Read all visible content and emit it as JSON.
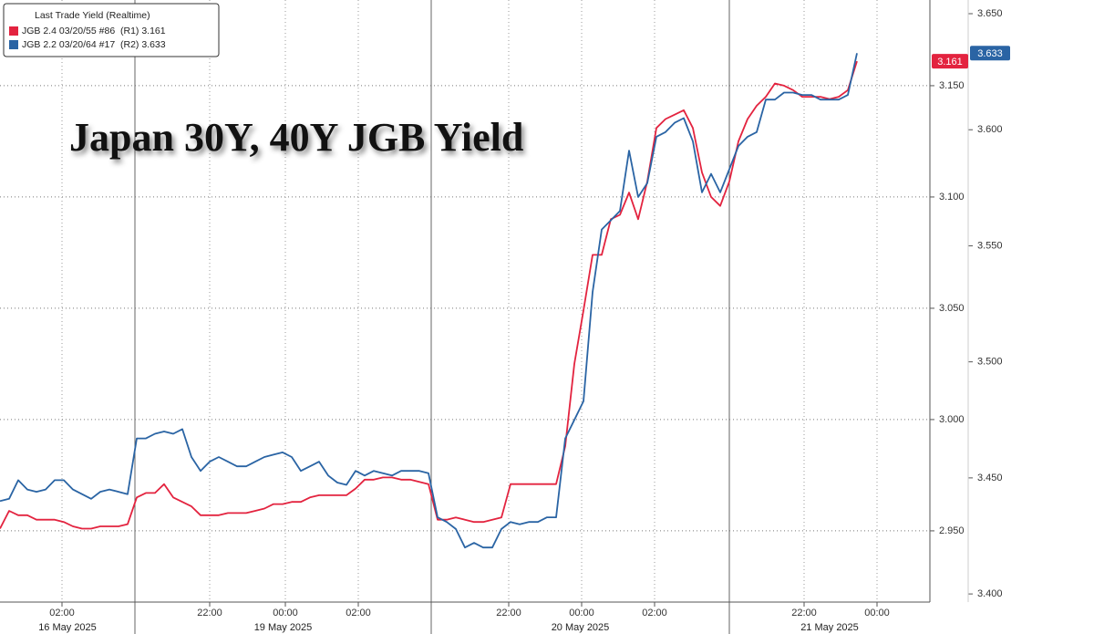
{
  "chart_data": {
    "type": "line",
    "title": "Japan 30Y, 40Y JGB Yield",
    "legend_title": "Last Trade Yield (Realtime)",
    "x": [
      0,
      1,
      2,
      3,
      4,
      5,
      6,
      7,
      8,
      9,
      10,
      11,
      12,
      13,
      14,
      15,
      16,
      17,
      18,
      19,
      20,
      21,
      22,
      23,
      24,
      25,
      26,
      27,
      28,
      29,
      30,
      31,
      32,
      33,
      34,
      35,
      36,
      37,
      38,
      39,
      40,
      41,
      42,
      43,
      44,
      45,
      46,
      47,
      48,
      49,
      50,
      51,
      52,
      53,
      54,
      55,
      56,
      57,
      58,
      59,
      60,
      61,
      62,
      63,
      64,
      65,
      66,
      67,
      68,
      69,
      70,
      71,
      72,
      73,
      74,
      75,
      76,
      77,
      78,
      79,
      80,
      81,
      82,
      83,
      84,
      85,
      86,
      87,
      88,
      89,
      90,
      91,
      92,
      93,
      94
    ],
    "xlim": [
      0,
      102
    ],
    "xticks": [
      {
        "value": 6.8,
        "label": "02:00"
      },
      {
        "value": 23,
        "label": "22:00"
      },
      {
        "value": 31.3,
        "label": "00:00"
      },
      {
        "value": 39.3,
        "label": "02:00"
      },
      {
        "value": 55.8,
        "label": "22:00"
      },
      {
        "value": 63.8,
        "label": "00:00"
      },
      {
        "value": 71.8,
        "label": "02:00"
      },
      {
        "value": 88.2,
        "label": "22:00"
      },
      {
        "value": 96.2,
        "label": "00:00"
      }
    ],
    "sessions": [
      {
        "label": "16 May 2025",
        "start": 0,
        "end": 14.8
      },
      {
        "label": "19 May 2025",
        "start": 14.8,
        "end": 47.3
      },
      {
        "label": "20 May 2025",
        "start": 47.3,
        "end": 80
      },
      {
        "label": "21 May 2025",
        "start": 80,
        "end": 102
      }
    ],
    "ylim": [
      2.918,
      3.1885
    ],
    "yticks": [
      {
        "value": 2.95,
        "label": "2.950"
      },
      {
        "value": 3,
        "label": "3.000"
      },
      {
        "value": 3.05,
        "label": "3.050"
      },
      {
        "value": 3.1,
        "label": "3.100"
      },
      {
        "value": 3.15,
        "label": "3.150"
      }
    ],
    "y2lim": [
      3.3965,
      3.6559
    ],
    "y2ticks": [
      {
        "value": 3.4,
        "label": "3.400"
      },
      {
        "value": 3.45,
        "label": "3.450"
      },
      {
        "value": 3.5,
        "label": "3.500"
      },
      {
        "value": 3.55,
        "label": "3.550"
      },
      {
        "value": 3.6,
        "label": "3.600"
      },
      {
        "value": 3.65,
        "label": "3.650"
      }
    ],
    "grid": true,
    "legend": "top-left",
    "series": [
      {
        "name": "JGB 2.4 03/20/55 #86  (R1) 3.161",
        "color": "#e3233f",
        "axis": "y",
        "last_value": 3.161,
        "values": [
          2.951,
          2.959,
          2.957,
          2.957,
          2.955,
          2.955,
          2.955,
          2.954,
          2.952,
          2.951,
          2.951,
          2.952,
          2.952,
          2.952,
          2.953,
          2.965,
          2.967,
          2.967,
          2.971,
          2.965,
          2.963,
          2.961,
          2.957,
          2.957,
          2.957,
          2.958,
          2.958,
          2.958,
          2.959,
          2.96,
          2.962,
          2.962,
          2.963,
          2.963,
          2.965,
          2.966,
          2.966,
          2.966,
          2.966,
          2.969,
          2.973,
          2.973,
          2.974,
          2.974,
          2.973,
          2.973,
          2.972,
          2.971,
          2.955,
          2.955,
          2.956,
          2.955,
          2.954,
          2.954,
          2.955,
          2.956,
          2.971,
          2.971,
          2.971,
          2.971,
          2.971,
          2.971,
          2.988,
          3.025,
          3.049,
          3.074,
          3.074,
          3.09,
          3.092,
          3.102,
          3.09,
          3.107,
          3.131,
          3.135,
          3.137,
          3.139,
          3.131,
          3.111,
          3.1,
          3.096,
          3.107,
          3.125,
          3.135,
          3.141,
          3.145,
          3.151,
          3.15,
          3.148,
          3.145,
          3.145,
          3.145,
          3.144,
          3.145,
          3.148,
          3.161
        ]
      },
      {
        "name": "JGB 2.2 03/20/64 #17  (R2) 3.633",
        "color": "#2a64a4",
        "axis": "y2",
        "last_value": 3.633,
        "values": [
          3.44,
          3.441,
          3.449,
          3.445,
          3.444,
          3.445,
          3.449,
          3.449,
          3.445,
          3.443,
          3.441,
          3.444,
          3.445,
          3.444,
          3.443,
          3.467,
          3.467,
          3.469,
          3.47,
          3.469,
          3.471,
          3.459,
          3.453,
          3.457,
          3.459,
          3.457,
          3.455,
          3.455,
          3.457,
          3.459,
          3.46,
          3.461,
          3.459,
          3.453,
          3.455,
          3.457,
          3.451,
          3.448,
          3.447,
          3.453,
          3.451,
          3.453,
          3.452,
          3.451,
          3.453,
          3.453,
          3.453,
          3.452,
          3.433,
          3.431,
          3.428,
          3.42,
          3.422,
          3.42,
          3.42,
          3.428,
          3.431,
          3.43,
          3.431,
          3.431,
          3.433,
          3.433,
          3.467,
          3.475,
          3.483,
          3.53,
          3.557,
          3.561,
          3.565,
          3.591,
          3.571,
          3.577,
          3.597,
          3.599,
          3.603,
          3.605,
          3.595,
          3.573,
          3.581,
          3.573,
          3.583,
          3.593,
          3.597,
          3.599,
          3.613,
          3.613,
          3.616,
          3.616,
          3.615,
          3.615,
          3.613,
          3.613,
          3.613,
          3.615,
          3.633
        ]
      }
    ]
  }
}
